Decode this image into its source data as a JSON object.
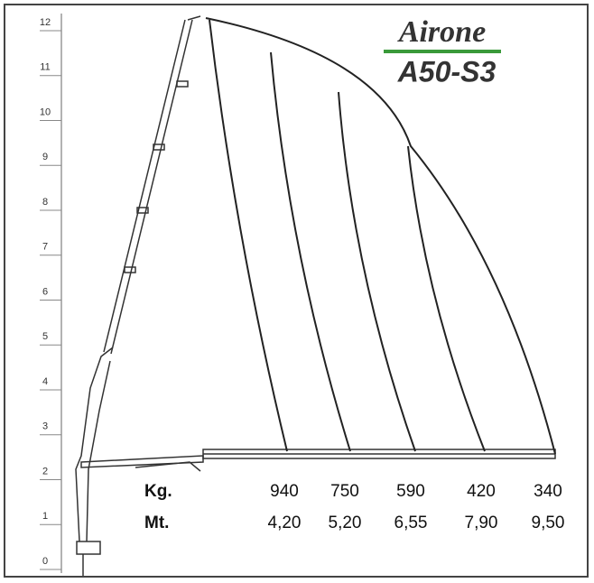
{
  "brand": "Airone",
  "model": "A50-S3",
  "height_scale": [
    "0",
    "1",
    "2",
    "3",
    "4",
    "5",
    "6",
    "7",
    "8",
    "9",
    "10",
    "11",
    "12"
  ],
  "load_table": {
    "rows": [
      {
        "label": "Kg.",
        "values": [
          "940",
          "750",
          "590",
          "420",
          "340"
        ]
      },
      {
        "label": "Mt.",
        "values": [
          "4,20",
          "5,20",
          "6,55",
          "7,90",
          "9,50"
        ]
      }
    ]
  }
}
